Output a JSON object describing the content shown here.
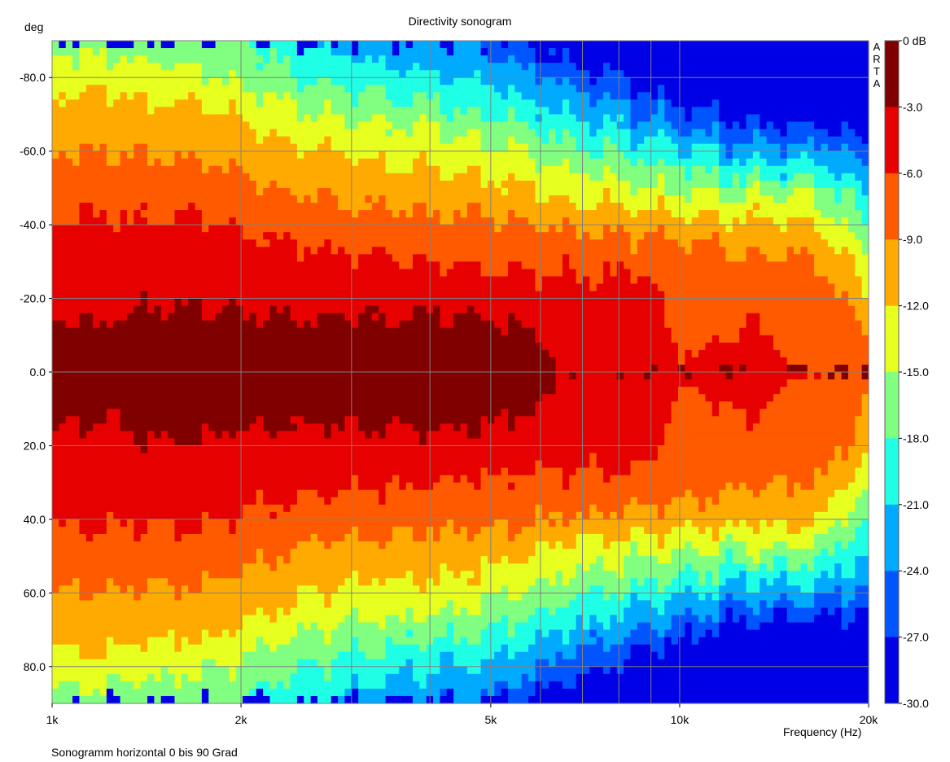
{
  "chart_data": {
    "type": "heatmap",
    "title": "Directivity sonogram",
    "ylabel_unit": "deg",
    "xlabel": "Frequency (Hz)",
    "note": "Sonogramm horizontal 0 bis 90 Grad",
    "brand": "ARTA",
    "x_scale": "log",
    "xlim": [
      1000,
      20000
    ],
    "ylim": [
      -90,
      90
    ],
    "y_inverted": true,
    "x_ticks": [
      {
        "value": 1000,
        "label": "1k"
      },
      {
        "value": 2000,
        "label": "2k"
      },
      {
        "value": 5000,
        "label": "5k"
      },
      {
        "value": 10000,
        "label": "10k"
      },
      {
        "value": 20000,
        "label": "20k"
      }
    ],
    "x_gridlines": [
      1000,
      2000,
      3000,
      4000,
      5000,
      6000,
      7000,
      8000,
      9000,
      10000,
      20000
    ],
    "y_ticks": [
      {
        "value": -80,
        "label": "-80.0"
      },
      {
        "value": -60,
        "label": "-60.0"
      },
      {
        "value": -40,
        "label": "-40.0"
      },
      {
        "value": -20,
        "label": "-20.0"
      },
      {
        "value": 0,
        "label": "0.0"
      },
      {
        "value": 20,
        "label": "20.0"
      },
      {
        "value": 40,
        "label": "40.0"
      },
      {
        "value": 60,
        "label": "60.0"
      },
      {
        "value": 80,
        "label": "80.0"
      }
    ],
    "grid": true,
    "colorbar": {
      "labels": [
        "0 dB",
        "-3.0",
        "-6.0",
        "-9.0",
        "-12.0",
        "-15.0",
        "-18.0",
        "-21.0",
        "-24.0",
        "-27.0",
        "-30.0"
      ],
      "levels": [
        0,
        -3,
        -6,
        -9,
        -12,
        -15,
        -18,
        -21,
        -24,
        -27,
        -30
      ],
      "colors": [
        "#800000",
        "#e60000",
        "#ff5a00",
        "#ffaa00",
        "#e6ff1e",
        "#80ff80",
        "#1effe6",
        "#00aaff",
        "#0055ff",
        "#0000e6"
      ]
    },
    "level_contours": {
      "description": "Angle (deg, symmetric +/-) at which the response falls below each level, per frequency",
      "freqs": [
        1000,
        1200,
        1400,
        1700,
        2000,
        2500,
        3000,
        3500,
        4000,
        5000,
        6000,
        6500,
        8000,
        9000,
        10000,
        12000,
        13000,
        15000,
        17000,
        19000,
        20000
      ],
      "boundaries": [
        {
          "level": -3,
          "angles": [
            15,
            13,
            18,
            18,
            16,
            14,
            15,
            15,
            16,
            15,
            9,
            0,
            0,
            0,
            0,
            0,
            0,
            0,
            0,
            0,
            0
          ]
        },
        {
          "level": -6,
          "angles": [
            41,
            42,
            42,
            43,
            38,
            34,
            32,
            31,
            30,
            28,
            27,
            27,
            27,
            26,
            3,
            9,
            14,
            2,
            0,
            0,
            0
          ]
        },
        {
          "level": -9,
          "angles": [
            60,
            59,
            58,
            58,
            54,
            48,
            45,
            45,
            43,
            42,
            40,
            39,
            38,
            37,
            36,
            33,
            30,
            32,
            28,
            16,
            5
          ]
        },
        {
          "level": -12,
          "angles": [
            75,
            76,
            73,
            73,
            68,
            61,
            58,
            56,
            56,
            53,
            49,
            46,
            45,
            44,
            43,
            42,
            41,
            42,
            38,
            28,
            18
          ]
        },
        {
          "level": -15,
          "angles": [
            86,
            86,
            84,
            83,
            78,
            71,
            68,
            67,
            66,
            62,
            58,
            55,
            52,
            50,
            49,
            48,
            47,
            48,
            45,
            37,
            28
          ]
        },
        {
          "level": -18,
          "angles": [
            90,
            90,
            90,
            90,
            90,
            80,
            77,
            75,
            73,
            70,
            66,
            63,
            59,
            57,
            55,
            53,
            52,
            53,
            51,
            45,
            38
          ]
        },
        {
          "level": -21,
          "angles": [
            90,
            90,
            90,
            90,
            90,
            90,
            86,
            83,
            81,
            78,
            73,
            70,
            66,
            63,
            61,
            58,
            57,
            57,
            57,
            52,
            46
          ]
        },
        {
          "level": -24,
          "angles": [
            90,
            90,
            90,
            90,
            90,
            90,
            90,
            90,
            90,
            87,
            80,
            77,
            73,
            69,
            67,
            63,
            62,
            62,
            62,
            59,
            54
          ]
        },
        {
          "level": -27,
          "angles": [
            90,
            90,
            90,
            90,
            90,
            90,
            90,
            90,
            90,
            90,
            87,
            84,
            80,
            75,
            73,
            68,
            67,
            67,
            67,
            65,
            61
          ]
        }
      ]
    }
  }
}
